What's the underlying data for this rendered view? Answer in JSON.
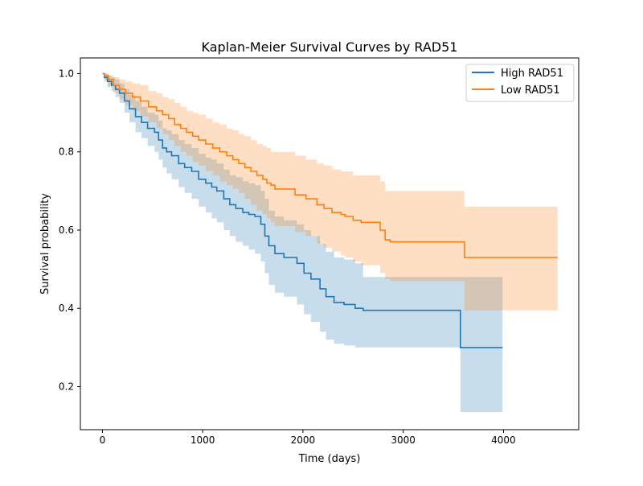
{
  "chart_data": {
    "type": "line",
    "title": "Kaplan-Meier Survival Curves by RAD51",
    "xlabel": "Time (days)",
    "ylabel": "Survival probability",
    "xlim": [
      -220,
      4750
    ],
    "ylim": [
      0.09,
      1.04
    ],
    "xticks": [
      0,
      1000,
      2000,
      3000,
      4000
    ],
    "yticks": [
      0.2,
      0.4,
      0.6,
      0.8,
      1.0
    ],
    "xtick_labels": [
      "0",
      "1000",
      "2000",
      "3000",
      "4000"
    ],
    "ytick_labels": [
      "0.2",
      "0.4",
      "0.6",
      "0.8",
      "1.0"
    ],
    "grid": false,
    "legend_position": "top-right",
    "step": "post",
    "series": [
      {
        "name": "High RAD51",
        "color": "#1f77b4",
        "ci_alpha": 0.25,
        "times": [
          0,
          20,
          50,
          90,
          130,
          170,
          220,
          270,
          330,
          390,
          450,
          520,
          560,
          600,
          640,
          690,
          760,
          820,
          890,
          960,
          1030,
          1090,
          1140,
          1210,
          1270,
          1330,
          1400,
          1460,
          1520,
          1580,
          1620,
          1660,
          1720,
          1810,
          1940,
          2010,
          2080,
          2170,
          2230,
          2310,
          2410,
          2520,
          2600,
          3350,
          3570,
          3990
        ],
        "survival": [
          1.0,
          0.99,
          0.98,
          0.97,
          0.96,
          0.95,
          0.93,
          0.91,
          0.89,
          0.875,
          0.86,
          0.85,
          0.83,
          0.81,
          0.8,
          0.79,
          0.77,
          0.76,
          0.75,
          0.73,
          0.72,
          0.71,
          0.7,
          0.68,
          0.665,
          0.655,
          0.645,
          0.64,
          0.635,
          0.615,
          0.585,
          0.56,
          0.54,
          0.53,
          0.515,
          0.49,
          0.475,
          0.45,
          0.43,
          0.415,
          0.41,
          0.4,
          0.395,
          0.395,
          0.3,
          0.3
        ],
        "ci_lower": [
          1.0,
          0.98,
          0.965,
          0.955,
          0.94,
          0.925,
          0.9,
          0.875,
          0.85,
          0.835,
          0.815,
          0.8,
          0.78,
          0.76,
          0.745,
          0.73,
          0.71,
          0.695,
          0.68,
          0.66,
          0.645,
          0.63,
          0.62,
          0.6,
          0.585,
          0.57,
          0.56,
          0.55,
          0.54,
          0.52,
          0.49,
          0.46,
          0.44,
          0.43,
          0.41,
          0.385,
          0.365,
          0.34,
          0.32,
          0.31,
          0.305,
          0.3,
          0.3,
          0.3,
          0.135,
          0.135
        ],
        "ci_upper": [
          1.0,
          1.0,
          0.995,
          0.99,
          0.985,
          0.975,
          0.96,
          0.945,
          0.93,
          0.915,
          0.9,
          0.895,
          0.88,
          0.86,
          0.855,
          0.845,
          0.83,
          0.82,
          0.81,
          0.795,
          0.785,
          0.78,
          0.77,
          0.755,
          0.74,
          0.735,
          0.725,
          0.72,
          0.715,
          0.7,
          0.68,
          0.65,
          0.635,
          0.625,
          0.615,
          0.6,
          0.585,
          0.565,
          0.545,
          0.53,
          0.525,
          0.515,
          0.48,
          0.48,
          0.48,
          0.48
        ]
      },
      {
        "name": "Low RAD51",
        "color": "#ff7f0e",
        "ci_alpha": 0.25,
        "times": [
          0,
          20,
          60,
          110,
          170,
          230,
          300,
          380,
          460,
          540,
          600,
          660,
          720,
          780,
          840,
          900,
          960,
          1030,
          1100,
          1170,
          1240,
          1300,
          1360,
          1420,
          1480,
          1540,
          1600,
          1640,
          1680,
          1720,
          1920,
          2030,
          2140,
          2210,
          2290,
          2380,
          2420,
          2500,
          2580,
          2770,
          2820,
          2870,
          3610,
          4540
        ],
        "survival": [
          1.0,
          0.995,
          0.985,
          0.97,
          0.96,
          0.95,
          0.94,
          0.93,
          0.915,
          0.905,
          0.895,
          0.885,
          0.87,
          0.86,
          0.85,
          0.84,
          0.83,
          0.82,
          0.81,
          0.8,
          0.79,
          0.78,
          0.77,
          0.76,
          0.75,
          0.74,
          0.73,
          0.72,
          0.715,
          0.705,
          0.69,
          0.68,
          0.665,
          0.655,
          0.645,
          0.64,
          0.635,
          0.625,
          0.62,
          0.6,
          0.575,
          0.57,
          0.53,
          0.53
        ],
        "ci_lower": [
          1.0,
          0.985,
          0.97,
          0.95,
          0.935,
          0.92,
          0.905,
          0.89,
          0.875,
          0.86,
          0.845,
          0.83,
          0.815,
          0.8,
          0.79,
          0.775,
          0.765,
          0.75,
          0.74,
          0.725,
          0.715,
          0.705,
          0.695,
          0.68,
          0.665,
          0.65,
          0.64,
          0.63,
          0.62,
          0.61,
          0.595,
          0.585,
          0.565,
          0.555,
          0.545,
          0.535,
          0.53,
          0.52,
          0.51,
          0.49,
          0.475,
          0.47,
          0.395,
          0.395
        ],
        "ci_upper": [
          1.0,
          1.0,
          0.995,
          0.99,
          0.985,
          0.98,
          0.975,
          0.97,
          0.955,
          0.95,
          0.94,
          0.935,
          0.925,
          0.915,
          0.905,
          0.9,
          0.895,
          0.885,
          0.875,
          0.87,
          0.86,
          0.855,
          0.845,
          0.84,
          0.83,
          0.82,
          0.815,
          0.81,
          0.8,
          0.8,
          0.79,
          0.78,
          0.77,
          0.765,
          0.755,
          0.75,
          0.75,
          0.74,
          0.74,
          0.725,
          0.7,
          0.7,
          0.66,
          0.64
        ]
      }
    ]
  }
}
